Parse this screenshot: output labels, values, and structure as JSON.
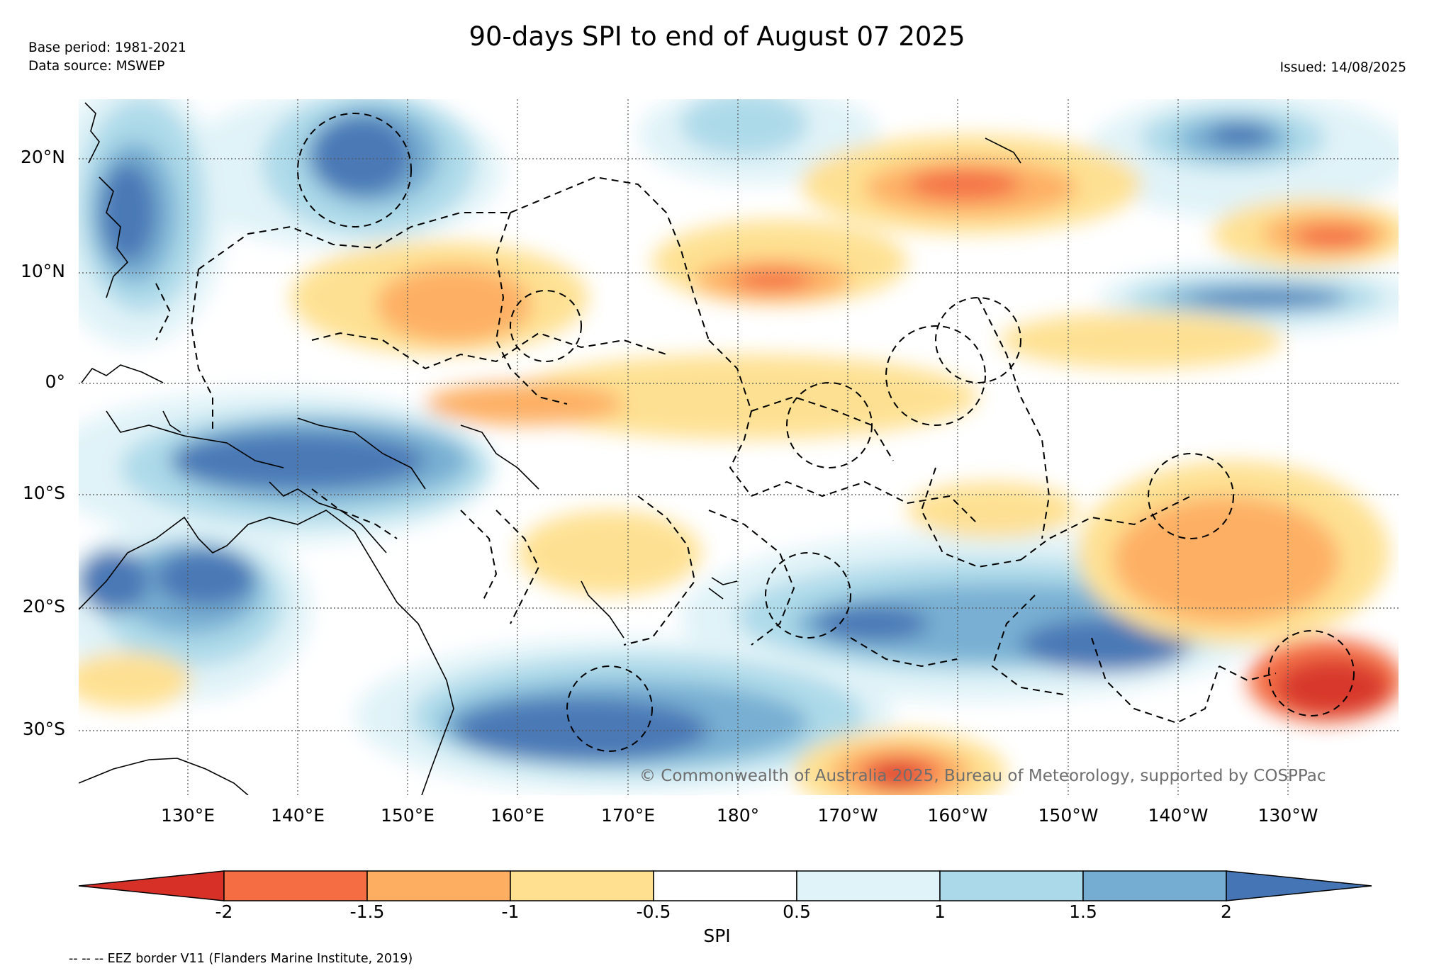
{
  "title": "90-days SPI to end of August 07 2025",
  "meta": {
    "base_period": "Base period: 1981-2021",
    "data_source": "Data source: MSWEP",
    "issued": "Issued: 14/08/2025"
  },
  "map": {
    "lat_labels": [
      "20°N",
      "10°N",
      "0°",
      "10°S",
      "20°S",
      "30°S"
    ],
    "lon_labels": [
      "130°E",
      "140°E",
      "150°E",
      "160°E",
      "170°E",
      "180°",
      "170°W",
      "160°W",
      "150°W",
      "140°W",
      "130°W"
    ],
    "copyright": "© Commonwealth of Australia 2025, Bureau of Meteorology, supported by COSPPac",
    "lat_range": [
      "25°N",
      "35°S"
    ],
    "lon_range": [
      "120°E",
      "120°W"
    ]
  },
  "colorbar": {
    "title": "SPI",
    "ticks": [
      "-2",
      "-1.5",
      "-1",
      "-0.5",
      "0.5",
      "1",
      "1.5",
      "2"
    ],
    "colors": {
      "below_-2": "#d73027",
      "-2_to_-1.5": "#f46d43",
      "-1.5_to_-1": "#fdae61",
      "-1_to_-0.5": "#fee090",
      "-0.5_to_0.5": "#ffffff",
      "0.5_to_1": "#e0f3f8",
      "1_to_1.5": "#abd9e9",
      "1.5_to_2": "#74add1",
      "above_2": "#4575b4"
    }
  },
  "footnote": "-- -- -- EEZ border V11 (Flanders Marine Institute, 2019)"
}
